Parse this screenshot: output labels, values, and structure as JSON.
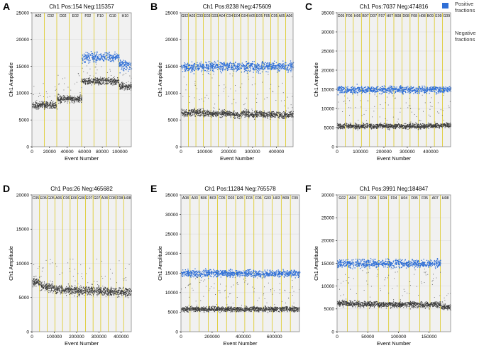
{
  "legend": {
    "positive_label": [
      "Positive",
      "fractions"
    ],
    "negative_label": [
      "Negative",
      "fractions"
    ],
    "positive_color": "#2f6fd6",
    "negative_color": "#555555"
  },
  "chart_data": [
    {
      "type": "scatter",
      "panel": "A",
      "title": "Ch1 Pos:154 Neg:115357",
      "xlabel": "Event Number",
      "ylabel": "Ch1 Amplitude",
      "xlim": [
        0,
        113000
      ],
      "ylim": [
        0,
        25000
      ],
      "xticks": [
        0,
        20000,
        40000,
        60000,
        80000,
        100000
      ],
      "yticks": [
        0,
        5000,
        10000,
        15000,
        20000,
        25000
      ],
      "well_labels": [
        "A02",
        "C02",
        "D02",
        "E02",
        "F02",
        "F10",
        "G10",
        "H10"
      ],
      "negative_levels": [
        7800,
        7800,
        9000,
        9000,
        12300,
        12300,
        12300,
        11300
      ],
      "positive_levels": [
        null,
        null,
        null,
        null,
        16800,
        16800,
        16800,
        15200
      ],
      "positive_count": 154,
      "negative_count": 115357
    },
    {
      "type": "scatter",
      "panel": "B",
      "title": "Ch1 Pos:8238 Neg:475609",
      "xlabel": "Event Number",
      "ylabel": "Ch1 Amplitude",
      "xlim": [
        0,
        470000
      ],
      "ylim": [
        0,
        25000
      ],
      "xticks": [
        0,
        100000,
        200000,
        300000,
        400000
      ],
      "yticks": [
        0,
        5000,
        10000,
        15000,
        20000,
        25000
      ],
      "well_labels": [
        "G02",
        "A03",
        "C03",
        "E03",
        "G03",
        "A04",
        "C04",
        "E04",
        "G04",
        "H05",
        "E05",
        "F05",
        "C05",
        "A05",
        "A06"
      ],
      "negative_levels": [
        6300,
        6500,
        6400,
        6300,
        6200,
        6300,
        6200,
        6000,
        6300,
        6100,
        6200,
        6000,
        6100,
        5900,
        6000
      ],
      "positive_levels": [
        15000,
        15000,
        15000,
        15000,
        15000,
        15000,
        15000,
        15000,
        15000,
        15000,
        15000,
        15000,
        15000,
        15000,
        15000
      ],
      "positive_count": 8238,
      "negative_count": 475609
    },
    {
      "type": "scatter",
      "panel": "C",
      "title": "Ch1 Pos:7037 Neg:474816",
      "xlabel": "Event Number",
      "ylabel": "Ch1 Amplitude",
      "xlim": [
        0,
        485000
      ],
      "ylim": [
        0,
        35000
      ],
      "xticks": [
        0,
        100000,
        200000,
        300000,
        400000
      ],
      "yticks": [
        0,
        5000,
        10000,
        15000,
        20000,
        25000,
        30000,
        35000
      ],
      "well_labels": [
        "D05",
        "F06",
        "H06",
        "B07",
        "D07",
        "F07",
        "H07",
        "B08",
        "D08",
        "F08",
        "H08",
        "B09",
        "E09",
        "G09"
      ],
      "negative_levels": [
        5400,
        5500,
        5400,
        5500,
        5400,
        5500,
        5400,
        5500,
        5400,
        5500,
        5400,
        5500,
        5600,
        5700
      ],
      "positive_levels": [
        15000,
        15000,
        15000,
        15000,
        15000,
        15000,
        15000,
        15000,
        15000,
        15000,
        15000,
        15000,
        15000,
        15000
      ],
      "positive_count": 7037,
      "negative_count": 474816
    },
    {
      "type": "scatter",
      "panel": "D",
      "title": "Ch1 Pos:26 Neg:465682",
      "xlabel": "Event Number",
      "ylabel": "Ch1 Amplitude",
      "xlim": [
        0,
        445000
      ],
      "ylim": [
        0,
        20000
      ],
      "xticks": [
        0,
        100000,
        200000,
        300000,
        400000
      ],
      "yticks": [
        0,
        5000,
        10000,
        15000,
        20000
      ],
      "well_labels": [
        "C05",
        "E05",
        "G05",
        "A06",
        "C06",
        "E06",
        "G06",
        "E07",
        "G07",
        "A08",
        "C08",
        "F08",
        "H08"
      ],
      "negative_levels": [
        7300,
        6700,
        6400,
        6200,
        6200,
        6100,
        6000,
        6000,
        6000,
        5900,
        5900,
        5800,
        5800
      ],
      "positive_levels": [
        null,
        null,
        null,
        null,
        null,
        null,
        null,
        null,
        null,
        null,
        null,
        null,
        null
      ],
      "positive_count": 26,
      "negative_count": 465682
    },
    {
      "type": "scatter",
      "panel": "E",
      "title": "Ch1 Pos:11284 Neg:765578",
      "xlabel": "Event Number",
      "ylabel": "Ch1 Amplitude",
      "xlim": [
        0,
        760000
      ],
      "ylim": [
        0,
        35000
      ],
      "xticks": [
        0,
        200000,
        400000,
        600000
      ],
      "yticks": [
        0,
        5000,
        10000,
        15000,
        20000,
        25000,
        30000,
        35000
      ],
      "well_labels": [
        "A08",
        "A03",
        "B06",
        "B03",
        "C05",
        "D03",
        "E05",
        "F03",
        "F06",
        "G03",
        "H03",
        "B09",
        "F09"
      ],
      "negative_levels": [
        5800,
        5900,
        5800,
        5900,
        5800,
        5900,
        5800,
        5900,
        5800,
        5900,
        5800,
        5900,
        5800
      ],
      "positive_levels": [
        15000,
        15000,
        15000,
        15000,
        15000,
        15000,
        15000,
        15000,
        15000,
        15000,
        15000,
        15000,
        15000
      ],
      "positive_count": 11284,
      "negative_count": 765578
    },
    {
      "type": "scatter",
      "panel": "F",
      "title": "Ch1 Pos:3991 Neg:184847",
      "xlabel": "Event Number",
      "ylabel": "Ch1 Amplitude",
      "xlim": [
        0,
        185000
      ],
      "ylim": [
        0,
        30000
      ],
      "xticks": [
        0,
        50000,
        100000,
        150000
      ],
      "yticks": [
        0,
        5000,
        10000,
        15000,
        20000,
        25000,
        30000
      ],
      "well_labels": [
        "G02",
        "A04",
        "C04",
        "D04",
        "E04",
        "F04",
        "H04",
        "D05",
        "F05",
        "A07",
        "H08"
      ],
      "negative_levels": [
        6300,
        6200,
        6100,
        6100,
        6000,
        6000,
        6000,
        6000,
        6000,
        6000,
        5500
      ],
      "positive_levels": [
        15000,
        15000,
        15000,
        15000,
        15000,
        15000,
        15000,
        15000,
        15000,
        15000,
        null
      ],
      "positive_count": 3991,
      "negative_count": 184847
    }
  ]
}
